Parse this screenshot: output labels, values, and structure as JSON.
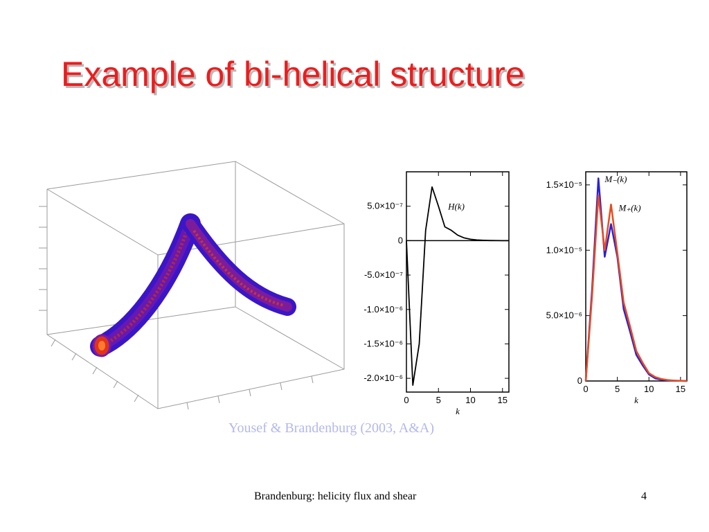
{
  "slide": {
    "title": "Example of bi-helical structure",
    "citation": "Yousef & Brandenburg (2003, A&A)",
    "footer": "Brandenburg: helicity flux and shear",
    "page_number": "4"
  },
  "colors": {
    "title": "#ee1c1c",
    "citation": "#b3b8ee",
    "tube_outer": "#3a16c8",
    "tube_inner": "#e03418",
    "minus_series": "#2a22d6",
    "plus_series": "#ea4a1e"
  },
  "chart_data": [
    {
      "type": "line",
      "xlabel": "k",
      "ylabel": "",
      "xlim": [
        0,
        16
      ],
      "ylim": [
        -2.2e-06,
        1e-06
      ],
      "xticks": [
        {
          "value": 0,
          "label": "0"
        },
        {
          "value": 5,
          "label": "5"
        },
        {
          "value": 10,
          "label": "10"
        },
        {
          "value": 15,
          "label": "15"
        }
      ],
      "yticks": [
        {
          "value": 5e-07,
          "label": "5.0×10⁻⁷"
        },
        {
          "value": 0,
          "label": "0"
        },
        {
          "value": -5e-07,
          "label": "-5.0×10⁻⁷"
        },
        {
          "value": -1e-06,
          "label": "-1.0×10⁻⁶"
        },
        {
          "value": -1.5e-06,
          "label": "-1.5×10⁻⁶"
        },
        {
          "value": -2e-06,
          "label": "-2.0×10⁻⁶"
        }
      ],
      "zero_line": true,
      "series": [
        {
          "name": "H(k)",
          "x": [
            0,
            1,
            2,
            3,
            4,
            5,
            6,
            7,
            8,
            9,
            10,
            11,
            12,
            13,
            14,
            15,
            16
          ],
          "y": [
            0,
            -2.1e-06,
            -1.5e-06,
            1.5e-07,
            7.8e-07,
            5e-07,
            2e-07,
            1.5e-07,
            8e-08,
            4e-08,
            2e-08,
            1e-08,
            5e-09,
            2e-09,
            1e-09,
            0,
            0
          ]
        }
      ],
      "annotations": [
        {
          "text": "H(k)",
          "x": 6.5,
          "y": 4.5e-07
        }
      ]
    },
    {
      "type": "line",
      "xlabel": "k",
      "ylabel": "",
      "xlim": [
        0,
        16
      ],
      "ylim": [
        0,
        1.6e-05
      ],
      "xticks": [
        {
          "value": 0,
          "label": "0"
        },
        {
          "value": 5,
          "label": "5"
        },
        {
          "value": 10,
          "label": "10"
        },
        {
          "value": 15,
          "label": "15"
        }
      ],
      "yticks": [
        {
          "value": 0,
          "label": "0"
        },
        {
          "value": 5e-06,
          "label": "5.0×10⁻⁶"
        },
        {
          "value": 1e-05,
          "label": "1.0×10⁻⁵"
        },
        {
          "value": 1.5e-05,
          "label": "1.5×10⁻⁵"
        }
      ],
      "series": [
        {
          "name": "M₋(k)",
          "color": "#2a22d6",
          "x": [
            0,
            1,
            2,
            3,
            4,
            5,
            6,
            7,
            8,
            9,
            10,
            11,
            12,
            13,
            14,
            15,
            16
          ],
          "y": [
            0,
            7e-06,
            1.55e-05,
            9.5e-06,
            1.2e-05,
            9.5e-06,
            5.5e-06,
            3.8e-06,
            2e-06,
            1.2e-06,
            5e-07,
            2e-07,
            1e-07,
            5e-08,
            2e-08,
            1e-08,
            0
          ]
        },
        {
          "name": "M₊(k)",
          "color": "#ea4a1e",
          "x": [
            0,
            1,
            2,
            3,
            4,
            5,
            6,
            7,
            8,
            9,
            10,
            11,
            12,
            13,
            14,
            15,
            16
          ],
          "y": [
            0,
            6.5e-06,
            1.42e-05,
            1e-05,
            1.35e-05,
            9.8e-06,
            6e-06,
            4.2e-06,
            2.3e-06,
            1.4e-06,
            6e-07,
            3e-07,
            1.5e-07,
            7e-08,
            3e-08,
            1e-08,
            0
          ]
        }
      ],
      "annotations": [
        {
          "text": "M₋(k)",
          "x": 3,
          "y": 1.52e-05
        },
        {
          "text": "M₊(k)",
          "x": 5.2,
          "y": 1.3e-05
        }
      ]
    }
  ]
}
